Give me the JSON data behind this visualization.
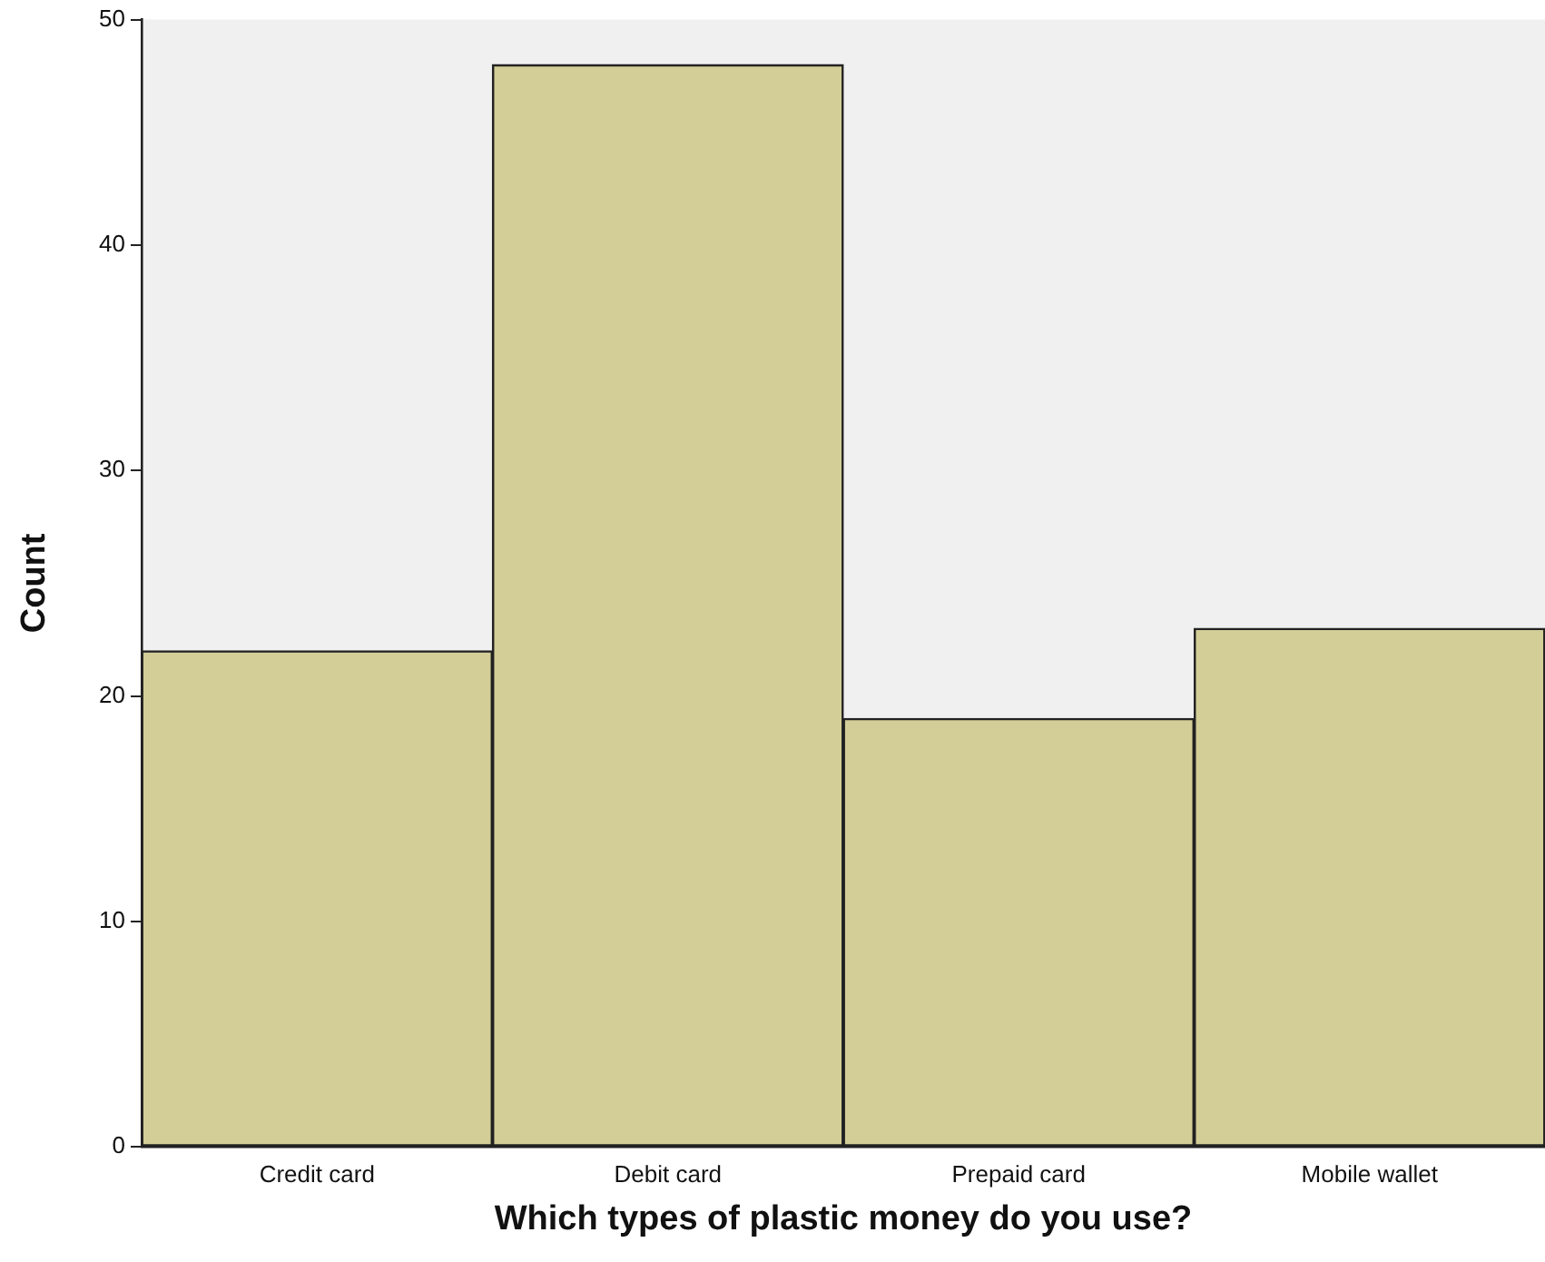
{
  "chart_data": {
    "type": "bar",
    "xlabel": "Which types of plastic money do you use?",
    "ylabel": "Count",
    "categories": [
      "Credit card",
      "Debit card",
      "Prepaid card",
      "Mobile wallet"
    ],
    "values": [
      22,
      48,
      19,
      23
    ],
    "color": "#d3ce97",
    "ylim": [
      0,
      50
    ],
    "yticks": [
      0,
      10,
      20,
      30,
      40,
      50
    ],
    "grid": false,
    "legend": false
  }
}
